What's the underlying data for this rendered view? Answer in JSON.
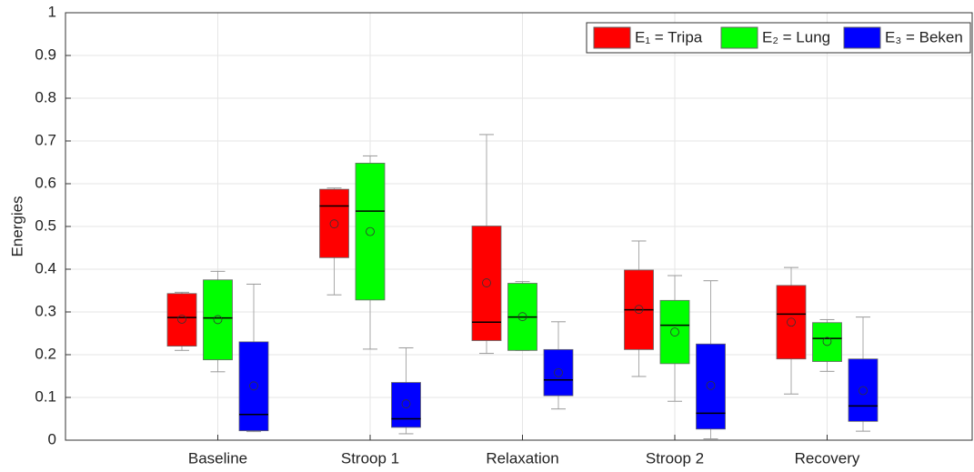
{
  "chart_data": {
    "type": "box",
    "y_label": "Energies",
    "categories": [
      "Baseline",
      "Stroop 1",
      "Relaxation",
      "Stroop 2",
      "Recovery"
    ],
    "ylim": [
      0,
      1
    ],
    "yticks": [
      0,
      0.1,
      0.2,
      0.3,
      0.4,
      0.5,
      0.6,
      0.7,
      0.8,
      0.9,
      1
    ],
    "grid": true,
    "legend": "upper right",
    "series": [
      {
        "name": "E₁ = Tripa",
        "color": "#ff0000",
        "min": [
          0.21,
          0.34,
          0.203,
          0.149,
          0.108
        ],
        "q1": [
          0.22,
          0.427,
          0.233,
          0.212,
          0.19
        ],
        "median": [
          0.287,
          0.548,
          0.276,
          0.305,
          0.295
        ],
        "q3": [
          0.343,
          0.587,
          0.501,
          0.398,
          0.362
        ],
        "max": [
          0.346,
          0.59,
          0.715,
          0.466,
          0.404
        ],
        "mean": [
          0.283,
          0.506,
          0.368,
          0.306,
          0.276
        ]
      },
      {
        "name": "E₂ = Lung",
        "color": "#00ff00",
        "min": [
          0.16,
          0.213,
          0.21,
          0.091,
          0.161
        ],
        "q1": [
          0.188,
          0.328,
          0.21,
          0.179,
          0.184
        ],
        "median": [
          0.286,
          0.536,
          0.288,
          0.269,
          0.238
        ],
        "q3": [
          0.375,
          0.648,
          0.367,
          0.327,
          0.275
        ],
        "max": [
          0.395,
          0.665,
          0.371,
          0.385,
          0.282
        ],
        "mean": [
          0.282,
          0.488,
          0.289,
          0.253,
          0.231
        ]
      },
      {
        "name": "E₃ = Beken",
        "color": "#0000ff",
        "min": [
          0.02,
          0.015,
          0.073,
          0.003,
          0.021
        ],
        "q1": [
          0.022,
          0.03,
          0.104,
          0.026,
          0.044
        ],
        "median": [
          0.06,
          0.05,
          0.141,
          0.063,
          0.08
        ],
        "q3": [
          0.23,
          0.135,
          0.212,
          0.225,
          0.19
        ],
        "max": [
          0.365,
          0.216,
          0.277,
          0.373,
          0.288
        ],
        "mean": [
          0.127,
          0.085,
          0.158,
          0.128,
          0.116
        ]
      }
    ]
  }
}
